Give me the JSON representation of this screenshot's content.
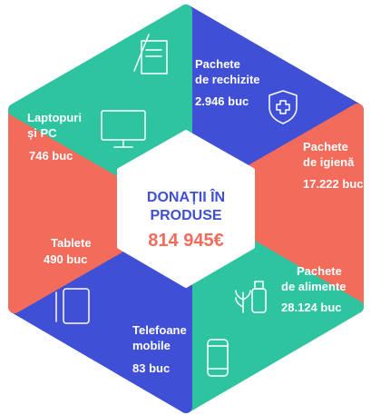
{
  "center": {
    "title_lines": [
      "DONAȚII ÎN",
      "PRODUSE"
    ],
    "amount": "814 945€"
  },
  "segments": [
    {
      "label_lines": [
        "Pachete",
        "de rechizite"
      ],
      "value": "2.946 buc"
    },
    {
      "label_lines": [
        "Pachete",
        "de igienă"
      ],
      "value": "17.222 buc"
    },
    {
      "label_lines": [
        "Pachete",
        "de alimente"
      ],
      "value": "28.124 buc"
    },
    {
      "label_lines": [
        "Telefoane",
        "mobile"
      ],
      "value": "83 buc"
    },
    {
      "label_lines": [
        "Tablete"
      ],
      "value": "490 buc"
    },
    {
      "label_lines": [
        "Laptopuri",
        "și PC"
      ],
      "value": "746 buc"
    }
  ]
}
